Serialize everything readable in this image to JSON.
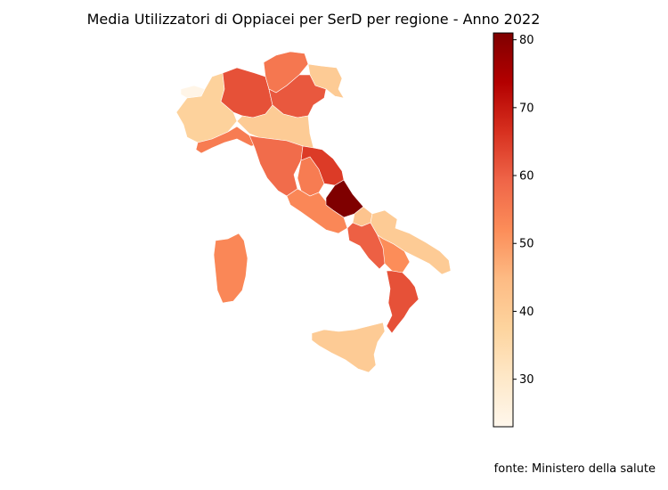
{
  "title": "Media Utilizzatori di Oppiacei per SerD per regione - Anno 2022",
  "source": "fonte: Ministero della salute",
  "colorbar": {
    "min": 23,
    "max": 81,
    "ticks": [
      30,
      40,
      50,
      60,
      70,
      80
    ],
    "colormap": "OrRd",
    "stops": [
      "#fff7ec",
      "#fee8c8",
      "#fdd49e",
      "#fdbb84",
      "#fc8d59",
      "#ef6548",
      "#d7301f",
      "#b30000",
      "#7f0000"
    ]
  },
  "regions": [
    {
      "name": "Valle d'Aosta",
      "value": 24
    },
    {
      "name": "Piemonte",
      "value": 38
    },
    {
      "name": "Liguria",
      "value": 55
    },
    {
      "name": "Lombardia",
      "value": 62
    },
    {
      "name": "Trentino-Alto Adige",
      "value": 56
    },
    {
      "name": "Friuli-Venezia Giulia",
      "value": 40
    },
    {
      "name": "Veneto",
      "value": 61
    },
    {
      "name": "Emilia-Romagna",
      "value": 40
    },
    {
      "name": "Toscana",
      "value": 58
    },
    {
      "name": "Umbria",
      "value": 55
    },
    {
      "name": "Marche",
      "value": 65
    },
    {
      "name": "Lazio",
      "value": 53
    },
    {
      "name": "Abruzzo",
      "value": 81
    },
    {
      "name": "Molise",
      "value": 42
    },
    {
      "name": "Campania",
      "value": 60
    },
    {
      "name": "Puglia",
      "value": 40
    },
    {
      "name": "Basilicata",
      "value": 52
    },
    {
      "name": "Calabria",
      "value": 62
    },
    {
      "name": "Sicilia",
      "value": 40
    },
    {
      "name": "Sardegna",
      "value": 53
    }
  ]
}
